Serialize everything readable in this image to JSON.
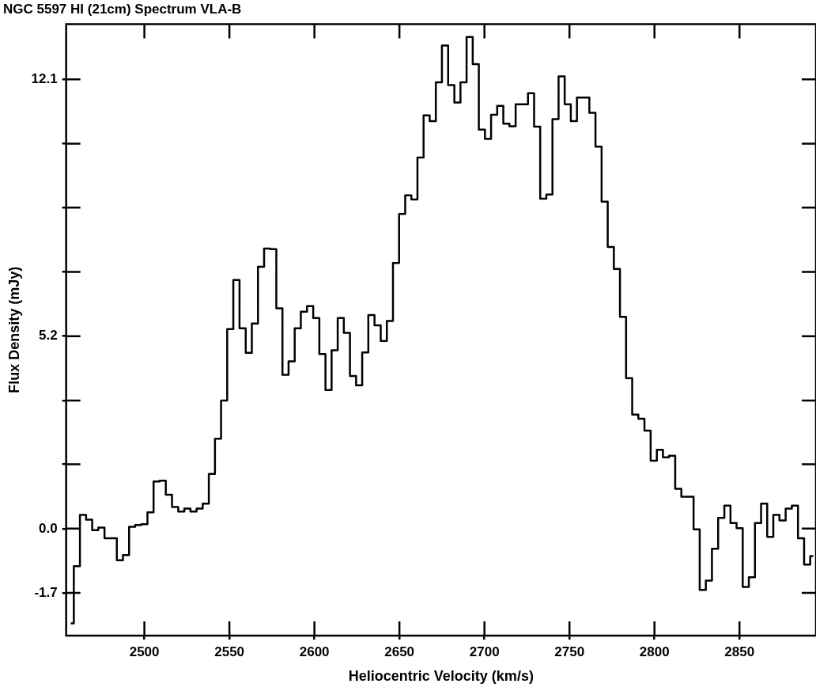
{
  "chart_data": {
    "type": "step",
    "title": "NGC 5597 HI (21cm) Spectrum VLA-B",
    "xlabel": "Heliocentric Velocity (km/s)",
    "ylabel": "Flux Density (mJy)",
    "color": "#000000",
    "x": [
      2456.7,
      2460.3,
      2463.9,
      2467.5,
      2471.1,
      2474.7,
      2478.4,
      2482.0,
      2485.6,
      2489.2,
      2492.8,
      2496.4,
      2500.0,
      2503.6,
      2507.2,
      2510.8,
      2514.4,
      2518.1,
      2521.7,
      2525.3,
      2528.9,
      2532.5,
      2536.1,
      2539.7,
      2543.3,
      2546.9,
      2550.5,
      2554.1,
      2557.8,
      2561.4,
      2565.0,
      2568.6,
      2572.2,
      2575.8,
      2579.4,
      2583.0,
      2586.6,
      2590.2,
      2593.8,
      2597.5,
      2601.1,
      2604.7,
      2608.3,
      2611.9,
      2615.5,
      2619.1,
      2622.7,
      2626.3,
      2629.9,
      2633.5,
      2637.2,
      2640.8,
      2644.4,
      2648.0,
      2651.6,
      2655.2,
      2658.8,
      2662.4,
      2666.0,
      2669.6,
      2673.2,
      2676.8,
      2680.5,
      2684.1,
      2687.7,
      2691.3,
      2694.9,
      2698.5,
      2702.1,
      2705.7,
      2709.3,
      2712.9,
      2716.5,
      2720.2,
      2723.8,
      2727.4,
      2731.0,
      2734.6,
      2738.2,
      2741.8,
      2745.4,
      2749.0,
      2752.6,
      2756.2,
      2759.9,
      2763.5,
      2767.1,
      2770.7,
      2774.3,
      2777.9,
      2781.5,
      2785.1,
      2788.7,
      2792.3,
      2795.9,
      2799.6,
      2803.2,
      2806.8,
      2810.4,
      2814.0,
      2817.6,
      2821.2,
      2824.8,
      2828.4,
      2832.0,
      2835.6,
      2839.3,
      2842.9,
      2846.5,
      2850.1,
      2853.7,
      2857.3,
      2860.9,
      2864.5,
      2868.1,
      2871.7,
      2875.3,
      2879.0,
      2882.6,
      2886.2,
      2889.8,
      2893.4
    ],
    "values": [
      -2.55,
      -1.01,
      0.37,
      0.24,
      -0.04,
      0.03,
      -0.26,
      -0.26,
      -0.85,
      -0.71,
      0.05,
      0.1,
      0.12,
      0.44,
      1.27,
      1.29,
      0.91,
      0.58,
      0.46,
      0.54,
      0.46,
      0.54,
      0.67,
      1.47,
      2.42,
      3.45,
      5.37,
      6.69,
      5.39,
      4.73,
      5.52,
      7.05,
      7.54,
      7.52,
      5.93,
      4.14,
      4.5,
      5.39,
      5.84,
      5.99,
      5.67,
      4.7,
      3.73,
      4.8,
      5.67,
      5.27,
      4.11,
      3.86,
      4.74,
      5.75,
      5.47,
      5.05,
      5.59,
      7.15,
      8.47,
      8.97,
      8.86,
      9.99,
      11.12,
      10.97,
      12.01,
      13.0,
      11.94,
      11.47,
      12.01,
      13.23,
      12.5,
      10.74,
      10.49,
      11.14,
      11.38,
      10.9,
      10.83,
      11.42,
      11.42,
      11.72,
      10.82,
      8.88,
      8.99,
      11.02,
      12.17,
      11.42,
      10.97,
      11.6,
      11.6,
      11.19,
      10.28,
      8.8,
      7.58,
      6.99,
      5.7,
      4.05,
      3.07,
      2.96,
      2.64,
      1.83,
      2.12,
      1.92,
      1.96,
      1.07,
      0.86,
      0.86,
      -0.02,
      -1.65,
      -1.4,
      -0.54,
      0.29,
      0.62,
      0.15,
      0.01,
      -1.57,
      -1.31,
      0.15,
      0.67,
      -0.22,
      0.37,
      0.22,
      0.54,
      0.62,
      -0.26,
      -0.97,
      -0.74
    ],
    "xlim": [
      2454,
      2895
    ],
    "xticks": [
      2500,
      2550,
      2600,
      2650,
      2700,
      2750,
      2800,
      2850
    ],
    "ylim": [
      -2.88,
      13.58
    ],
    "yticks": [
      {
        "value": -1.73,
        "label": "-1.7"
      },
      {
        "value": 0,
        "label": "0.0"
      },
      {
        "value": 1.73,
        "label": null
      },
      {
        "value": 3.45,
        "label": null
      },
      {
        "value": 5.18,
        "label": "5.2"
      },
      {
        "value": 6.91,
        "label": null
      },
      {
        "value": 8.64,
        "label": null
      },
      {
        "value": 10.36,
        "label": null
      },
      {
        "value": 12.09,
        "label": "12.1"
      }
    ]
  }
}
